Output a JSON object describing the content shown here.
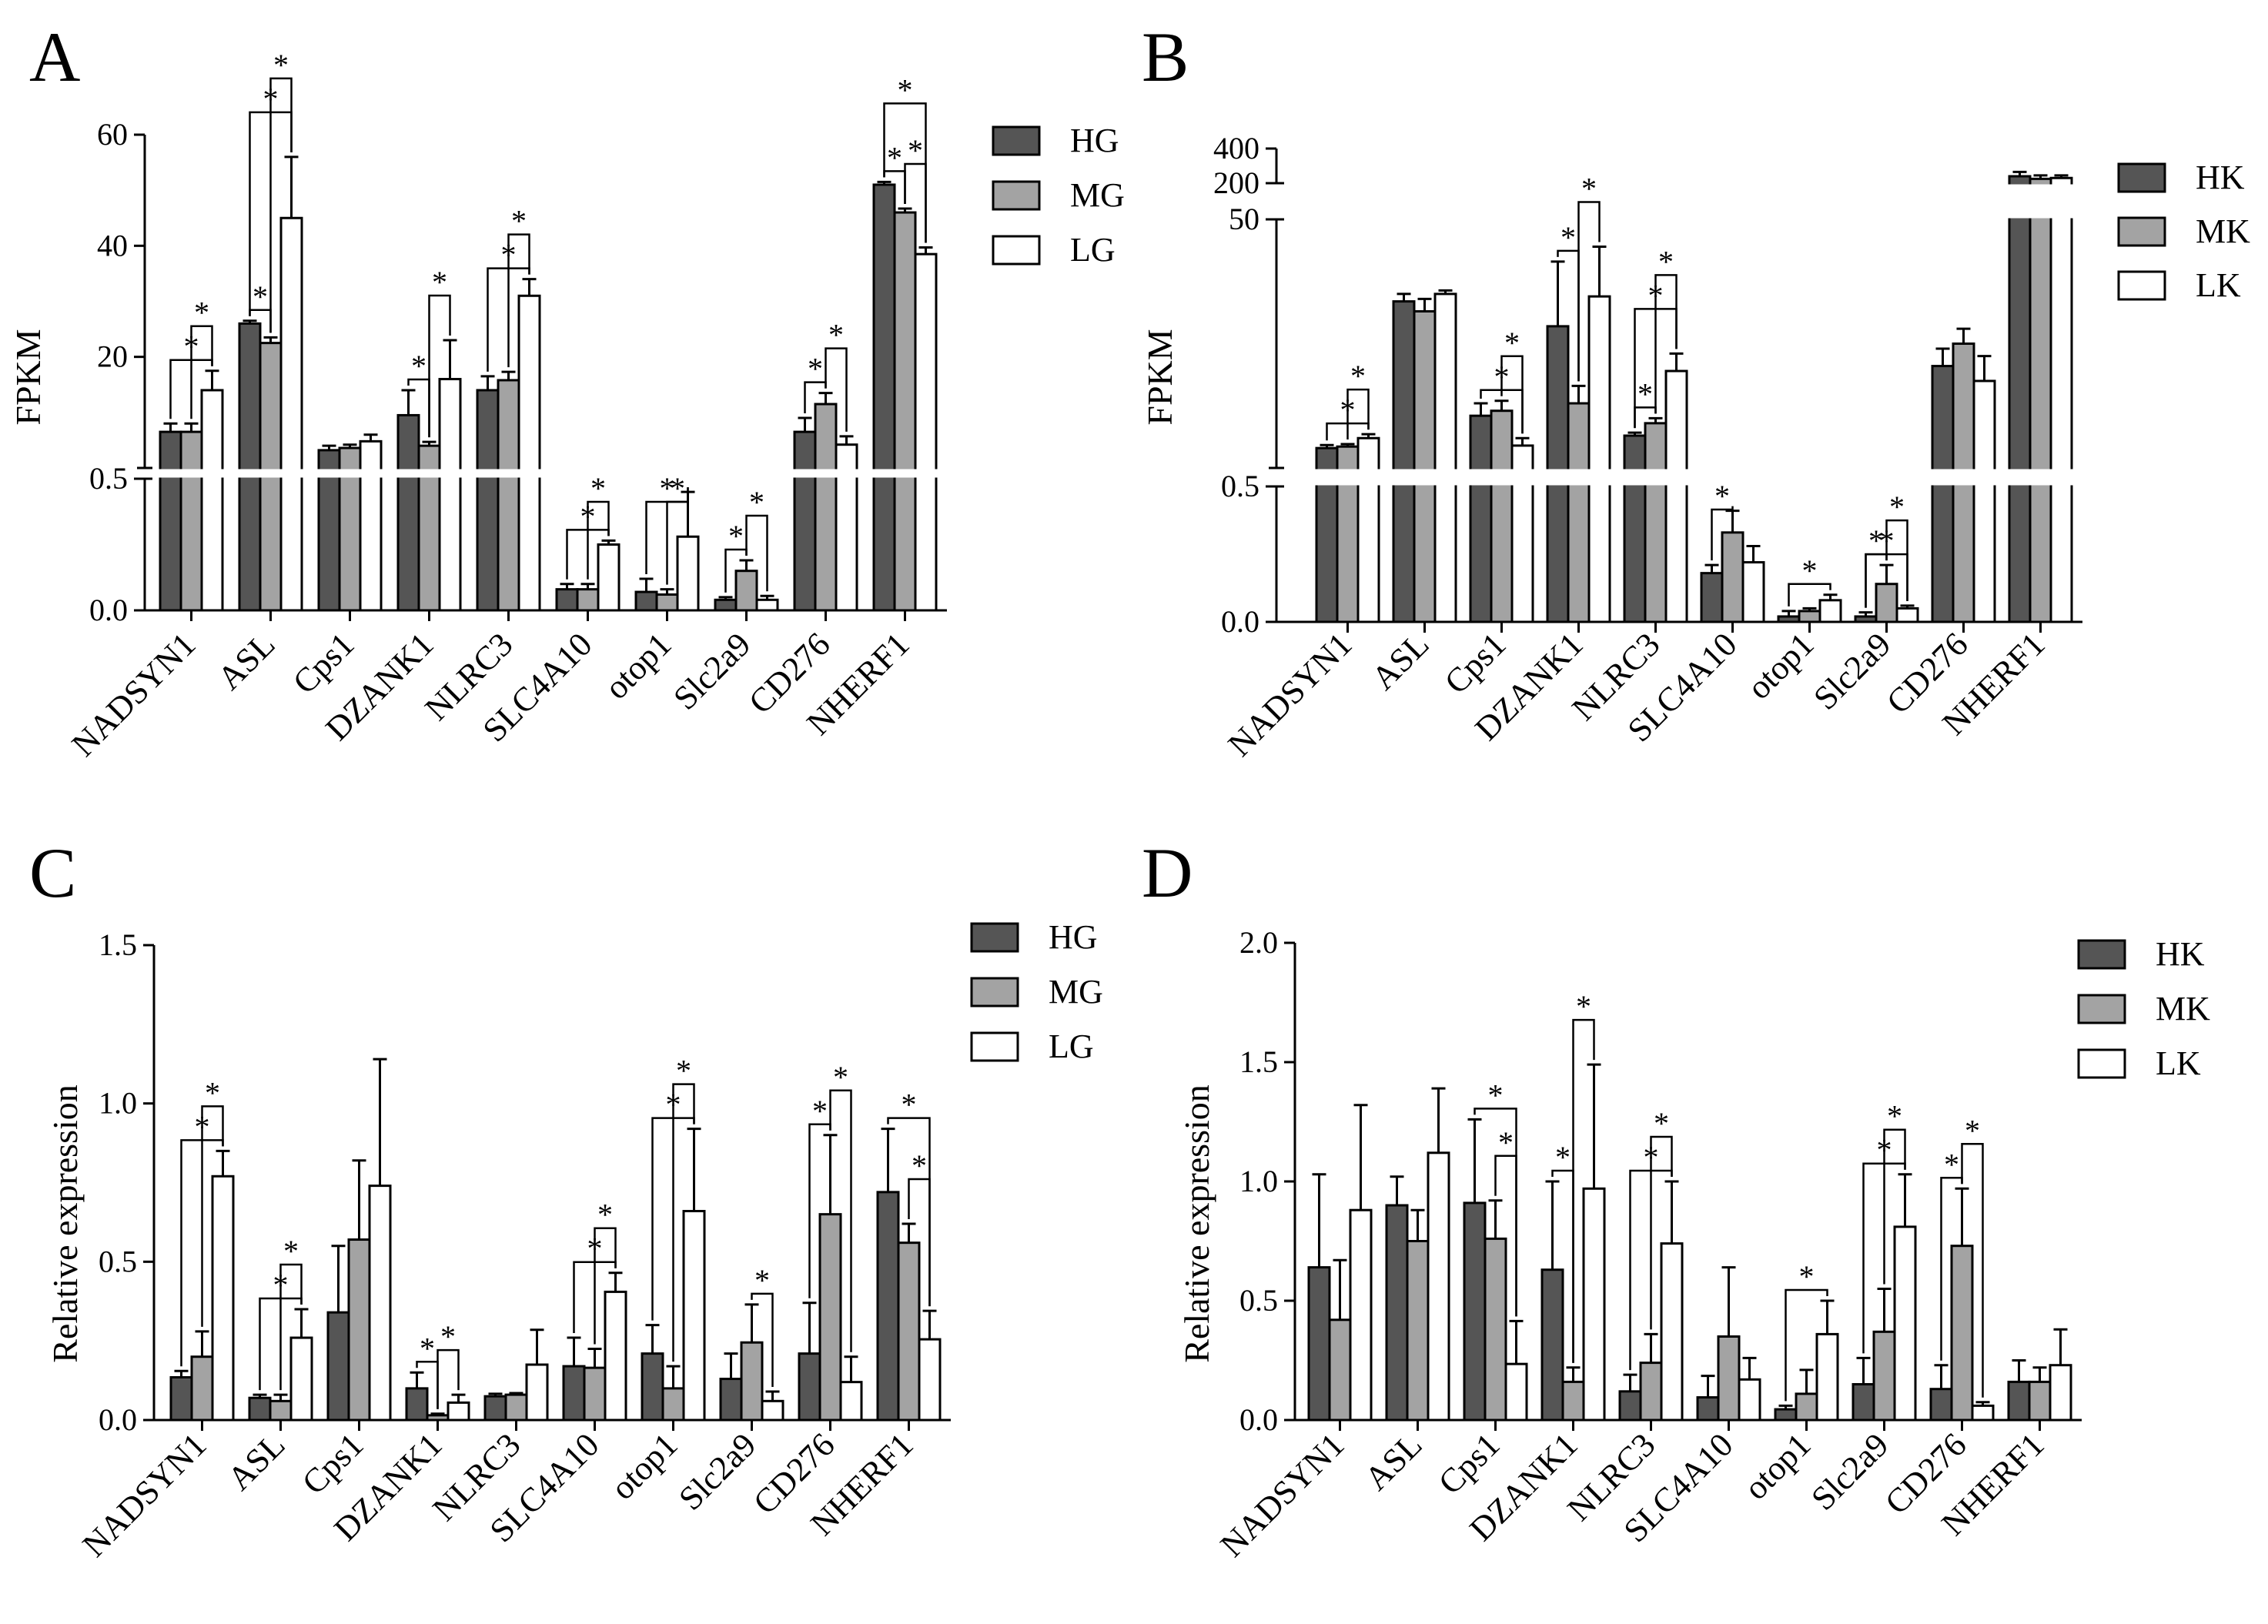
{
  "colors": {
    "high": "#555555",
    "mid": "#a3a3a3",
    "low": "#ffffff",
    "stroke": "#000000"
  },
  "chart_data": [
    {
      "id": "A",
      "letter": "A",
      "type": "bar",
      "ylabel": "FPKM",
      "categories": [
        "NADSYN1",
        "ASL",
        "Cps1",
        "DZANK1",
        "NLRC3",
        "SLC4A10",
        "otop1",
        "Slc2a9",
        "CD276",
        "NHERF1"
      ],
      "legend": [
        "HG",
        "MG",
        "LG"
      ],
      "axis": {
        "type": "broken",
        "lower": {
          "ylim": [
            0,
            0.5
          ],
          "ticks": [
            0.0,
            0.5
          ],
          "tick_labels": [
            "0.0",
            "0.5"
          ]
        },
        "upper": {
          "ylim": [
            0,
            60
          ],
          "ticks": [
            20,
            40,
            60
          ],
          "tick_labels": [
            "20",
            "40",
            "60"
          ]
        }
      },
      "series": [
        {
          "name": "HG",
          "values": [
            6.5,
            26,
            3.2,
            9.5,
            14,
            0.08,
            0.07,
            0.04,
            6.5,
            51
          ],
          "errors": [
            1.5,
            0.5,
            0.8,
            4.5,
            2.5,
            0.02,
            0.05,
            0.01,
            2.5,
            0.5
          ]
        },
        {
          "name": "MG",
          "values": [
            6.5,
            22.5,
            3.6,
            4.0,
            15.8,
            0.08,
            0.06,
            0.15,
            11.5,
            46
          ],
          "errors": [
            1.5,
            1.0,
            0.6,
            0.7,
            1.5,
            0.02,
            0.02,
            0.04,
            2.0,
            0.7
          ]
        },
        {
          "name": "LG",
          "values": [
            14,
            45,
            4.8,
            16,
            31,
            0.25,
            0.28,
            0.04,
            4.2,
            38.5
          ],
          "errors": [
            3.5,
            11,
            1.2,
            7,
            3,
            0.015,
            0.17,
            0.015,
            1.5,
            1.2
          ]
        }
      ],
      "significance": [
        {
          "cat": 0,
          "from": 0,
          "to": 2,
          "upper": true,
          "label": "*"
        },
        {
          "cat": 0,
          "from": 1,
          "to": 2,
          "upper": true,
          "label": "*"
        },
        {
          "cat": 1,
          "from": 0,
          "to": 1,
          "upper": true,
          "label": "*"
        },
        {
          "cat": 1,
          "from": 0,
          "to": 2,
          "upper": true,
          "label": "*"
        },
        {
          "cat": 1,
          "from": 1,
          "to": 2,
          "upper": true,
          "label": "*"
        },
        {
          "cat": 3,
          "from": 0,
          "to": 1,
          "upper": true,
          "label": "*"
        },
        {
          "cat": 3,
          "from": 1,
          "to": 2,
          "upper": true,
          "label": "*"
        },
        {
          "cat": 4,
          "from": 0,
          "to": 2,
          "upper": true,
          "label": "*"
        },
        {
          "cat": 4,
          "from": 1,
          "to": 2,
          "upper": true,
          "label": "*"
        },
        {
          "cat": 5,
          "from": 0,
          "to": 2,
          "upper": false,
          "label": "*"
        },
        {
          "cat": 5,
          "from": 1,
          "to": 2,
          "upper": false,
          "label": "*"
        },
        {
          "cat": 6,
          "from": 0,
          "to": 2,
          "upper": false,
          "label": "*"
        },
        {
          "cat": 6,
          "from": 1,
          "to": 2,
          "upper": false,
          "label": "*"
        },
        {
          "cat": 7,
          "from": 0,
          "to": 1,
          "upper": false,
          "label": "*"
        },
        {
          "cat": 7,
          "from": 1,
          "to": 2,
          "upper": false,
          "label": "*"
        },
        {
          "cat": 8,
          "from": 0,
          "to": 1,
          "upper": true,
          "label": "*"
        },
        {
          "cat": 8,
          "from": 1,
          "to": 2,
          "upper": true,
          "label": "*"
        },
        {
          "cat": 9,
          "from": 0,
          "to": 1,
          "upper": true,
          "label": "*"
        },
        {
          "cat": 9,
          "from": 1,
          "to": 2,
          "upper": true,
          "label": "*"
        },
        {
          "cat": 9,
          "from": 0,
          "to": 2,
          "upper": true,
          "label": "*"
        }
      ]
    },
    {
      "id": "B",
      "letter": "B",
      "type": "bar",
      "ylabel": "FPKM",
      "categories": [
        "NADSYN1",
        "ASL",
        "Cps1",
        "DZANK1",
        "NLRC3",
        "SLC4A10",
        "otop1",
        "Slc2a9",
        "CD276",
        "NHERF1"
      ],
      "legend": [
        "HK",
        "MK",
        "LK"
      ],
      "axis": {
        "type": "broken3",
        "lower": {
          "ylim": [
            0,
            0.5
          ],
          "ticks": [
            0.0,
            0.5
          ],
          "tick_labels": [
            "0.0",
            "0.5"
          ]
        },
        "upper": {
          "ylim": [
            0,
            50
          ],
          "ticks": [
            50
          ],
          "tick_labels": [
            "50"
          ]
        },
        "top": {
          "ylim": [
            200,
            400
          ],
          "ticks": [
            200,
            400
          ],
          "tick_labels": [
            "200",
            "400"
          ]
        }
      },
      "series": [
        {
          "name": "HK",
          "values": [
            4,
            33.5,
            10.5,
            28.5,
            6.5,
            0.18,
            0.02,
            0.02,
            20.5,
            240
          ],
          "errors": [
            0.6,
            1.5,
            2.5,
            13,
            0.6,
            0.03,
            0.02,
            0.015,
            3.5,
            25
          ]
        },
        {
          "name": "MK",
          "values": [
            4.3,
            31.5,
            11.5,
            13,
            9,
            0.33,
            0.04,
            0.14,
            25,
            225
          ],
          "errors": [
            0.5,
            2.5,
            2.0,
            3.5,
            1.0,
            0.08,
            0.01,
            0.07,
            3.0,
            20
          ]
        },
        {
          "name": "LK",
          "values": [
            6,
            35,
            4.5,
            34.5,
            19.5,
            0.22,
            0.08,
            0.05,
            17.5,
            230
          ],
          "errors": [
            0.8,
            0.7,
            1.5,
            10,
            3.5,
            0.06,
            0.02,
            0.01,
            5,
            15
          ]
        }
      ],
      "significance": [
        {
          "cat": 0,
          "from": 0,
          "to": 2,
          "upper": true,
          "label": "*"
        },
        {
          "cat": 0,
          "from": 1,
          "to": 2,
          "upper": true,
          "label": "*"
        },
        {
          "cat": 2,
          "from": 0,
          "to": 2,
          "upper": true,
          "label": "*"
        },
        {
          "cat": 2,
          "from": 1,
          "to": 2,
          "upper": true,
          "label": "*"
        },
        {
          "cat": 3,
          "from": 0,
          "to": 1,
          "upper": true,
          "label": "*"
        },
        {
          "cat": 3,
          "from": 1,
          "to": 2,
          "upper": true,
          "label": "*"
        },
        {
          "cat": 4,
          "from": 0,
          "to": 1,
          "upper": true,
          "label": "*"
        },
        {
          "cat": 4,
          "from": 0,
          "to": 2,
          "upper": true,
          "label": "*"
        },
        {
          "cat": 4,
          "from": 1,
          "to": 2,
          "upper": true,
          "label": "*"
        },
        {
          "cat": 5,
          "from": 0,
          "to": 1,
          "upper": false,
          "label": "*"
        },
        {
          "cat": 6,
          "from": 0,
          "to": 2,
          "upper": false,
          "label": "*"
        },
        {
          "cat": 7,
          "from": 0,
          "to": 2,
          "upper": true,
          "label": "*"
        },
        {
          "cat": 7,
          "from": 1,
          "to": 2,
          "upper": true,
          "label": "*"
        },
        {
          "cat": 7,
          "from": 0,
          "to": 1,
          "upper": false,
          "label": "*"
        }
      ]
    },
    {
      "id": "C",
      "letter": "C",
      "type": "bar",
      "ylabel": "Relative expression",
      "categories": [
        "NADSYN1",
        "ASL",
        "Cps1",
        "DZANK1",
        "NLRC3",
        "SLC4A10",
        "otop1",
        "Slc2a9",
        "CD276",
        "NHERF1"
      ],
      "legend": [
        "HG",
        "MG",
        "LG"
      ],
      "axis": {
        "type": "linear",
        "ylim": [
          0,
          1.5
        ],
        "ticks": [
          0.0,
          0.5,
          1.0,
          1.5
        ],
        "tick_labels": [
          "0.0",
          "0.5",
          "1.0",
          "1.5"
        ]
      },
      "series": [
        {
          "name": "HG",
          "values": [
            0.135,
            0.07,
            0.34,
            0.1,
            0.075,
            0.17,
            0.21,
            0.13,
            0.21,
            0.72
          ],
          "errors": [
            0.02,
            0.01,
            0.21,
            0.05,
            0.008,
            0.09,
            0.09,
            0.08,
            0.16,
            0.2
          ]
        },
        {
          "name": "MG",
          "values": [
            0.2,
            0.06,
            0.57,
            0.015,
            0.08,
            0.165,
            0.1,
            0.245,
            0.65,
            0.56
          ],
          "errors": [
            0.08,
            0.02,
            0.25,
            0.005,
            0.005,
            0.06,
            0.07,
            0.12,
            0.25,
            0.06
          ]
        },
        {
          "name": "LG",
          "values": [
            0.77,
            0.26,
            0.74,
            0.055,
            0.175,
            0.405,
            0.66,
            0.06,
            0.12,
            0.255
          ],
          " errors": [
            0.08,
            0.09,
            0.4,
            0.025,
            0.11,
            0.06,
            0.26,
            0.03,
            0.08,
            0.09
          ]
        }
      ],
      "significance": [
        {
          "cat": 0,
          "from": 0,
          "to": 2,
          "label": "*"
        },
        {
          "cat": 0,
          "from": 1,
          "to": 2,
          "label": "*"
        },
        {
          "cat": 1,
          "from": 0,
          "to": 2,
          "label": "*"
        },
        {
          "cat": 1,
          "from": 1,
          "to": 2,
          "label": "*"
        },
        {
          "cat": 3,
          "from": 0,
          "to": 1,
          "label": "*"
        },
        {
          "cat": 3,
          "from": 1,
          "to": 2,
          "label": "*"
        },
        {
          "cat": 5,
          "from": 0,
          "to": 2,
          "label": "*"
        },
        {
          "cat": 5,
          "from": 1,
          "to": 2,
          "label": "*"
        },
        {
          "cat": 6,
          "from": 0,
          "to": 2,
          "label": "*"
        },
        {
          "cat": 6,
          "from": 1,
          "to": 2,
          "label": "*"
        },
        {
          "cat": 7,
          "from": 1,
          "to": 2,
          "label": "*"
        },
        {
          "cat": 8,
          "from": 0,
          "to": 1,
          "label": "*"
        },
        {
          "cat": 8,
          "from": 1,
          "to": 2,
          "label": "*"
        },
        {
          "cat": 9,
          "from": 0,
          "to": 2,
          "label": "*"
        },
        {
          "cat": 9,
          "from": 1,
          "to": 2,
          "label": "*"
        }
      ]
    },
    {
      "id": "D",
      "letter": "D",
      "type": "bar",
      "ylabel": "Relative expression",
      "categories": [
        "NADSYN1",
        "ASL",
        "Cps1",
        "DZANK1",
        "NLRC3",
        "SLC4A10",
        "otop1",
        "Slc2a9",
        "CD276",
        "NHERF1"
      ],
      "legend": [
        "HK",
        "MK",
        "LK"
      ],
      "axis": {
        "type": "linear",
        "ylim": [
          0,
          2.0
        ],
        "ticks": [
          0.0,
          0.5,
          1.0,
          1.5,
          2.0
        ],
        "tick_labels": [
          "0.0",
          "0.5",
          "1.0",
          "1.5",
          "2.0"
        ]
      },
      "series": [
        {
          "name": "HK",
          "values": [
            0.64,
            0.9,
            0.91,
            0.63,
            0.12,
            0.095,
            0.045,
            0.15,
            0.13,
            0.16
          ],
          "errors": [
            0.39,
            0.12,
            0.35,
            0.37,
            0.07,
            0.09,
            0.015,
            0.11,
            0.1,
            0.09
          ]
        },
        {
          "name": "MK",
          "values": [
            0.42,
            0.75,
            0.76,
            0.16,
            0.24,
            0.35,
            0.11,
            0.37,
            0.73,
            0.16
          ],
          "errors": [
            0.25,
            0.13,
            0.16,
            0.06,
            0.12,
            0.29,
            0.1,
            0.18,
            0.24,
            0.06
          ]
        },
        {
          "name": "LK",
          "values": [
            0.88,
            1.12,
            0.235,
            0.97,
            0.74,
            0.17,
            0.36,
            0.81,
            0.06,
            0.23
          ],
          "errors": [
            0.44,
            0.27,
            0.18,
            0.52,
            0.26,
            0.09,
            0.14,
            0.22,
            0.015,
            0.15
          ]
        }
      ],
      "significance": [
        {
          "cat": 2,
          "from": 0,
          "to": 2,
          "label": "*"
        },
        {
          "cat": 2,
          "from": 1,
          "to": 2,
          "label": "*"
        },
        {
          "cat": 3,
          "from": 0,
          "to": 1,
          "label": "*"
        },
        {
          "cat": 3,
          "from": 1,
          "to": 2,
          "label": "*"
        },
        {
          "cat": 4,
          "from": 0,
          "to": 2,
          "label": "*"
        },
        {
          "cat": 4,
          "from": 1,
          "to": 2,
          "label": "*"
        },
        {
          "cat": 6,
          "from": 0,
          "to": 2,
          "label": "*"
        },
        {
          "cat": 7,
          "from": 0,
          "to": 2,
          "label": "*"
        },
        {
          "cat": 7,
          "from": 1,
          "to": 2,
          "label": "*"
        },
        {
          "cat": 8,
          "from": 0,
          "to": 1,
          "label": "*"
        },
        {
          "cat": 8,
          "from": 1,
          "to": 2,
          "label": "*"
        }
      ]
    }
  ]
}
